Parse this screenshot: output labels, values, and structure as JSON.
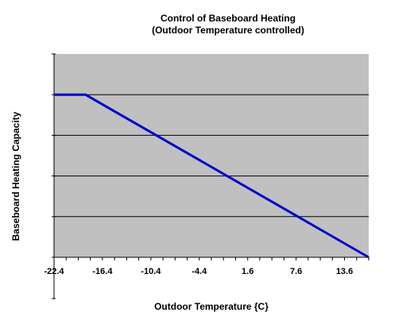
{
  "chart_data": {
    "type": "line",
    "title": "Control of Baseboard Heating",
    "subtitle": "(Outdoor Temperature controlled)",
    "xlabel": "Outdoor Temperature {C}",
    "ylabel": "Baseboard Heating Capacity",
    "x_tick_labels": [
      "-22.4",
      "-16.4",
      "-10.4",
      "-4.4",
      "1.6",
      "7.6",
      "13.6"
    ],
    "x_ticks": [
      -22.4,
      -16.4,
      -10.4,
      -4.4,
      1.6,
      7.6,
      13.6
    ],
    "xlim": [
      -22.4,
      16.6
    ],
    "ylim": [
      0,
      5
    ],
    "y_gridlines": [
      1,
      2,
      3,
      4
    ],
    "grid": true,
    "plot_background": "#c0c0c0",
    "series": [
      {
        "color": "#0000cc",
        "x": [
          -22.4,
          -18.5,
          16.6
        ],
        "y": [
          4,
          4,
          0
        ]
      }
    ]
  }
}
